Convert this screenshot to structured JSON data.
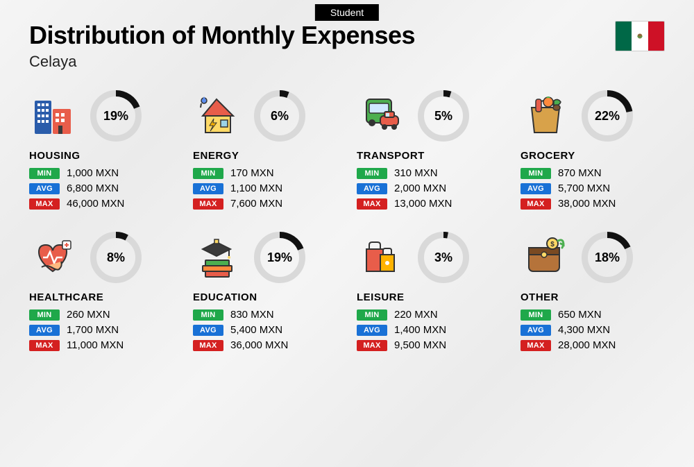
{
  "tag": "Student",
  "title": "Distribution of Monthly Expenses",
  "city": "Celaya",
  "currency": "MXN",
  "labels": {
    "min": "MIN",
    "avg": "AVG",
    "max": "MAX"
  },
  "colors": {
    "min_badge": "#1fa84a",
    "avg_badge": "#1971d6",
    "max_badge": "#d42020",
    "donut_track": "#d9d9d9",
    "donut_fill": "#111111",
    "background_start": "#f5f5f5",
    "background_end": "#ebebeb"
  },
  "flag": {
    "left": "#006847",
    "middle": "#ffffff",
    "right": "#ce1126"
  },
  "donut": {
    "size": 74,
    "stroke": 9
  },
  "categories": [
    {
      "key": "housing",
      "label": "HOUSING",
      "pct": 19,
      "min": "1,000 MXN",
      "avg": "6,800 MXN",
      "max": "46,000 MXN"
    },
    {
      "key": "energy",
      "label": "ENERGY",
      "pct": 6,
      "min": "170 MXN",
      "avg": "1,100 MXN",
      "max": "7,600 MXN"
    },
    {
      "key": "transport",
      "label": "TRANSPORT",
      "pct": 5,
      "min": "310 MXN",
      "avg": "2,000 MXN",
      "max": "13,000 MXN"
    },
    {
      "key": "grocery",
      "label": "GROCERY",
      "pct": 22,
      "min": "870 MXN",
      "avg": "5,700 MXN",
      "max": "38,000 MXN"
    },
    {
      "key": "healthcare",
      "label": "HEALTHCARE",
      "pct": 8,
      "min": "260 MXN",
      "avg": "1,700 MXN",
      "max": "11,000 MXN"
    },
    {
      "key": "education",
      "label": "EDUCATION",
      "pct": 19,
      "min": "830 MXN",
      "avg": "5,400 MXN",
      "max": "36,000 MXN"
    },
    {
      "key": "leisure",
      "label": "LEISURE",
      "pct": 3,
      "min": "220 MXN",
      "avg": "1,400 MXN",
      "max": "9,500 MXN"
    },
    {
      "key": "other",
      "label": "OTHER",
      "pct": 18,
      "min": "650 MXN",
      "avg": "4,300 MXN",
      "max": "28,000 MXN"
    }
  ],
  "icons": {
    "housing": "<rect x='4' y='8' width='24' height='48' rx='2' fill='#2a5caa'/><rect x='8' y='12' width='4' height='4' fill='#fff'/><rect x='14' y='12' width='4' height='4' fill='#fff'/><rect x='20' y='12' width='4' height='4' fill='#fff'/><rect x='8' y='20' width='4' height='4' fill='#fff'/><rect x='14' y='20' width='4' height='4' fill='#fff'/><rect x='20' y='20' width='4' height='4' fill='#fff'/><rect x='8' y='28' width='4' height='4' fill='#fff'/><rect x='14' y='28' width='4' height='4' fill='#fff'/><rect x='20' y='28' width='4' height='4' fill='#fff'/><rect x='8' y='36' width='4' height='4' fill='#fff'/><rect x='14' y='36' width='4' height='4' fill='#fff'/><rect x='20' y='36' width='4' height='4' fill='#fff'/><rect x='30' y='20' width='26' height='36' rx='2' fill='#e85d4a'/><rect x='34' y='26' width='5' height='5' fill='#fff'/><rect x='42' y='26' width='5' height='5' fill='#fff'/><rect x='34' y='34' width='5' height='5' fill='#fff'/><rect x='42' y='34' width='5' height='5' fill='#fff'/><rect x='38' y='44' width='6' height='12' fill='#3a3a3a'/>",
    "energy": "<path d='M30 6 L10 30 L54 30 Z' fill='#e85d4a' stroke='#333' stroke-width='2'/><rect x='14' y='30' width='36' height='24' fill='#ffd966' stroke='#333' stroke-width='2'/><rect x='36' y='36' width='10' height='10' fill='#9cd3e8' stroke='#333' stroke-width='1.5'/><path d='M26 34 L20 44 L25 44 L21 52 L30 40 L25 40 Z' fill='#ffb300' stroke='#333' stroke-width='1'/><circle cx='12' cy='8' r='4' fill='#5b8def' stroke='#333' stroke-width='1.5'/><path d='M12 2 L14 6 L10 6 Z' fill='#5b8def'/><path d='M8 12 L7 18' stroke='#333' stroke-width='2'/>",
    "transport": "<rect x='10' y='6' width='36' height='34' rx='5' fill='#4caf50' stroke='#333' stroke-width='2'/><rect x='14' y='12' width='28' height='14' rx='2' fill='#cfe9ff' stroke='#333' stroke-width='1.5'/><circle cx='18' cy='40' r='5' fill='#333'/><circle cx='38' cy='40' r='5' fill='#333'/><rect x='30' y='30' width='26' height='14' rx='5' fill='#e85d4a' stroke='#333' stroke-width='2'/><rect x='36' y='24' width='14' height='8' rx='2' fill='#e85d4a' stroke='#333' stroke-width='2'/><rect x='38' y='26' width='5' height='5' fill='#cfe9ff'/><circle cx='36' cy='46' r='4' fill='#333'/><circle cx='50' cy='46' r='4' fill='#333'/>",
    "grocery": "<path d='M12 18 L52 18 L48 54 L16 54 Z' fill='#d8a24a' stroke='#333' stroke-width='2'/><path d='M20 18 Q20 8 32 8 Q44 8 44 18' fill='none' stroke='#333' stroke-width='2'/><rect x='18' y='6' width='8' height='18' rx='3' fill='#e85d4a' stroke='#333' stroke-width='1.5'/><circle cx='36' cy='10' r='7' fill='#ff8a3c' stroke='#333' stroke-width='1.5'/><path d='M34 4 Q36 2 38 4' stroke='#4caf50' stroke-width='2' fill='none'/><path d='M44 8 Q50 4 54 10 Q52 16 44 14 Z' fill='#4caf50' stroke='#333' stroke-width='1.5'/><ellipse cx='48' cy='18' rx='5' ry='4' fill='#7a5230' stroke='#333' stroke-width='1.5'/>",
    "healthcare": "<path d='M30 50 Q10 36 10 22 Q10 12 20 12 Q28 12 30 20 Q32 12 40 12 Q50 12 50 22 Q50 36 30 50 Z' fill='#e85d4a' stroke='#333' stroke-width='2'/><path d='M16 30 L22 30 L26 22 L32 38 L36 30 L44 30' fill='none' stroke='#fff' stroke-width='2.5'/><path d='M14 44 Q20 40 28 44 Q38 50 40 46 Q44 42 42 36' fill='#ffb980' stroke='#333' stroke-width='2'/><rect x='44' y='6' width='12' height='12' rx='2' fill='#fff' stroke='#333' stroke-width='1.5'/><path d='M50 9 L50 15 M47 12 L53 12' stroke='#e85d4a' stroke-width='2'/>",
    "education": "<rect x='14' y='34' width='34' height='8' rx='1' fill='#4caf50' stroke='#333' stroke-width='2'/><rect x='10' y='42' width='42' height='8' rx='1' fill='#ff8a3c' stroke='#333' stroke-width='2'/><rect x='14' y='50' width='34' height='8' rx='1' fill='#e85d4a' stroke='#333' stroke-width='2'/><path d='M30 8 L10 18 L30 28 L50 18 Z' fill='#3a3a3a' stroke='#333' stroke-width='2'/><rect x='27' y='4' width='6' height='6' fill='#ffd966' stroke='#333' stroke-width='1.5'/><path d='M48 18 L48 28' stroke='#333' stroke-width='2'/><circle cx='48' cy='30' r='2' fill='#ffd966'/>",
    "leisure": "<rect x='10' y='18' width='24' height='32' fill='#e85d4a' stroke='#333' stroke-width='2'/><path d='M14 18 L14 12 Q14 8 18 8 L26 8 Q30 8 30 12 L30 18' fill='none' stroke='#333' stroke-width='2'/><rect x='30' y='26' width='20' height='24' fill='#ffb300' stroke='#333' stroke-width='2'/><path d='M34 26 L34 20 Q34 17 37 17 L43 17 Q46 17 46 20 L46 26' fill='none' stroke='#333' stroke-width='2'/><circle cx='40' cy='38' r='3' fill='#fff'/>",
    "other": "<rect x='8' y='16' width='44' height='34' rx='6' fill='#b5733a' stroke='#333' stroke-width='2'/><rect x='8' y='16' width='44' height='10' fill='#7a4a22' stroke='#333' stroke-width='2'/><circle cx='30' cy='26' r='4' fill='#ffd966' stroke='#333' stroke-width='1.5'/><circle cx='42' cy='10' r='8' fill='#ffd966' stroke='#333' stroke-width='2'/><text x='42' y='14' font-size='10' text-anchor='middle' fill='#333' font-weight='bold'>$</text><path d='M50 6 Q58 2 58 12 L54 10 M58 12 L56 16' fill='none' stroke='#4caf50' stroke-width='3' stroke-linecap='round'/>"
  }
}
